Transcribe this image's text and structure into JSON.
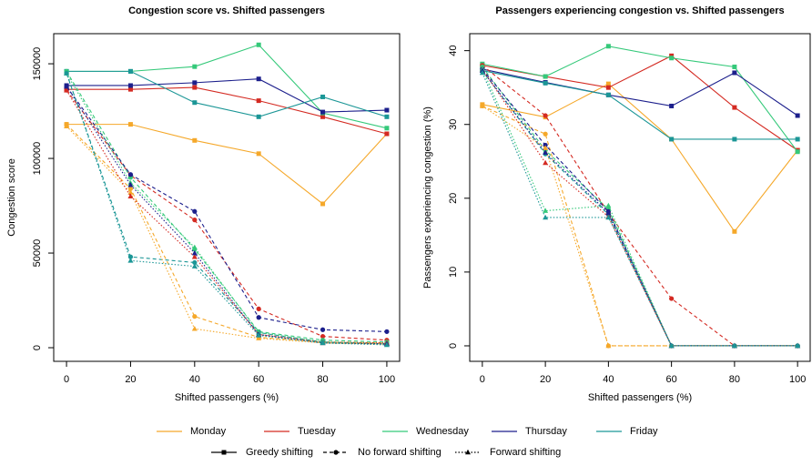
{
  "chart_data": [
    {
      "type": "line",
      "title": "Congestion score vs. Shifted passengers",
      "xlabel": "Shifted passengers (%)",
      "ylabel": "Congestion score",
      "x": [
        0,
        20,
        40,
        60,
        80,
        100
      ],
      "xlim": [
        -4,
        104
      ],
      "ylim": [
        -7200,
        165900
      ],
      "xticks": [
        0,
        20,
        40,
        60,
        80,
        100
      ],
      "yticks": [
        0,
        50000,
        100000,
        150000
      ],
      "series": [
        {
          "name": "Monday",
          "strategy": "Greedy shifting",
          "values": [
            118000,
            118000,
            109500,
            102500,
            76000,
            113000
          ]
        },
        {
          "name": "Tuesday",
          "strategy": "Greedy shifting",
          "values": [
            136500,
            136500,
            137500,
            130500,
            122000,
            113000
          ]
        },
        {
          "name": "Wednesday",
          "strategy": "Greedy shifting",
          "values": [
            146000,
            146000,
            148500,
            160000,
            124000,
            116000
          ]
        },
        {
          "name": "Thursday",
          "strategy": "Greedy shifting",
          "values": [
            138500,
            138500,
            140000,
            142000,
            124500,
            125500
          ]
        },
        {
          "name": "Friday",
          "strategy": "Greedy shifting",
          "values": [
            146000,
            146000,
            129500,
            122000,
            132500,
            122000
          ]
        },
        {
          "name": "Monday",
          "strategy": "No forward shifting",
          "values": [
            118000,
            84000,
            16500,
            5500,
            3000,
            2500
          ]
        },
        {
          "name": "Tuesday",
          "strategy": "No forward shifting",
          "values": [
            136000,
            91000,
            67500,
            20500,
            6000,
            4000
          ]
        },
        {
          "name": "Wednesday",
          "strategy": "No forward shifting",
          "values": [
            146000,
            90000,
            52000,
            8500,
            4000,
            3000
          ]
        },
        {
          "name": "Thursday",
          "strategy": "No forward shifting",
          "values": [
            138000,
            91500,
            72000,
            16000,
            9500,
            8500
          ]
        },
        {
          "name": "Friday",
          "strategy": "No forward shifting",
          "values": [
            145000,
            48000,
            45000,
            8000,
            3000,
            2000
          ]
        },
        {
          "name": "Monday",
          "strategy": "Forward shifting",
          "values": [
            117000,
            82000,
            10000,
            5000,
            2500,
            2000
          ]
        },
        {
          "name": "Tuesday",
          "strategy": "Forward shifting",
          "values": [
            136000,
            80000,
            48000,
            7000,
            3000,
            2500
          ]
        },
        {
          "name": "Wednesday",
          "strategy": "Forward shifting",
          "values": [
            145000,
            87000,
            53000,
            8000,
            3000,
            2000
          ]
        },
        {
          "name": "Thursday",
          "strategy": "Forward shifting",
          "values": [
            138000,
            86000,
            50000,
            7000,
            2500,
            2000
          ]
        },
        {
          "name": "Friday",
          "strategy": "Forward shifting",
          "values": [
            145000,
            46000,
            43000,
            6500,
            2500,
            1500
          ]
        }
      ]
    },
    {
      "type": "line",
      "title": "Passengers experiencing congestion vs. Shifted passengers",
      "xlabel": "Shifted passengers (%)",
      "ylabel": "Passengers experiencing congestion (%)",
      "x": [
        0,
        20,
        40,
        60,
        80,
        100
      ],
      "xlim": [
        -4,
        104
      ],
      "ylim": [
        -2.1,
        42.3
      ],
      "xticks": [
        0,
        20,
        40,
        60,
        80,
        100
      ],
      "yticks": [
        0,
        10,
        20,
        30,
        40
      ],
      "series": [
        {
          "name": "Monday",
          "strategy": "Greedy shifting",
          "values": [
            32.7,
            31,
            35.5,
            28,
            15.5,
            26.5
          ]
        },
        {
          "name": "Tuesday",
          "strategy": "Greedy shifting",
          "values": [
            38,
            36.5,
            35,
            39.3,
            32.3,
            26.5
          ]
        },
        {
          "name": "Wednesday",
          "strategy": "Greedy shifting",
          "values": [
            38.2,
            36.5,
            40.6,
            39,
            37.8,
            26.3
          ]
        },
        {
          "name": "Thursday",
          "strategy": "Greedy shifting",
          "values": [
            37.5,
            35.7,
            34,
            32.5,
            37,
            31.2
          ]
        },
        {
          "name": "Friday",
          "strategy": "Greedy shifting",
          "values": [
            37.3,
            35.6,
            34,
            28,
            28,
            28
          ]
        },
        {
          "name": "Monday",
          "strategy": "No forward shifting",
          "values": [
            32.5,
            28.7,
            0,
            0,
            0,
            0
          ]
        },
        {
          "name": "Tuesday",
          "strategy": "No forward shifting",
          "values": [
            38,
            31.2,
            18,
            6.4,
            0,
            0
          ]
        },
        {
          "name": "Wednesday",
          "strategy": "No forward shifting",
          "values": [
            37.8,
            26.5,
            18.5,
            0,
            0,
            0
          ]
        },
        {
          "name": "Thursday",
          "strategy": "No forward shifting",
          "values": [
            37.5,
            27.2,
            18.2,
            0,
            0,
            0
          ]
        },
        {
          "name": "Friday",
          "strategy": "No forward shifting",
          "values": [
            37.3,
            26,
            17.8,
            0,
            0,
            0
          ]
        },
        {
          "name": "Monday",
          "strategy": "Forward shifting",
          "values": [
            32.5,
            26.8,
            0,
            0,
            0,
            0
          ]
        },
        {
          "name": "Tuesday",
          "strategy": "Forward shifting",
          "values": [
            37.5,
            24.8,
            17.5,
            0,
            0,
            0
          ]
        },
        {
          "name": "Wednesday",
          "strategy": "Forward shifting",
          "values": [
            37.5,
            18.3,
            19,
            0,
            0,
            0
          ]
        },
        {
          "name": "Thursday",
          "strategy": "Forward shifting",
          "values": [
            37.3,
            26.2,
            18,
            0,
            0,
            0
          ]
        },
        {
          "name": "Friday",
          "strategy": "Forward shifting",
          "values": [
            37,
            17.4,
            17.4,
            0,
            0,
            0
          ]
        }
      ]
    }
  ],
  "legend": {
    "days": [
      {
        "name": "Monday",
        "color": "#f5a82a"
      },
      {
        "name": "Tuesday",
        "color": "#d42a22"
      },
      {
        "name": "Wednesday",
        "color": "#35c97a"
      },
      {
        "name": "Thursday",
        "color": "#1c1f8c"
      },
      {
        "name": "Friday",
        "color": "#1b9696"
      }
    ],
    "strategies": [
      {
        "name": "Greedy shifting",
        "dash": "solid",
        "marker": "square"
      },
      {
        "name": "No forward shifting",
        "dash": "dashed",
        "marker": "circle"
      },
      {
        "name": "Forward shifting",
        "dash": "dotted",
        "marker": "triangle"
      }
    ]
  }
}
